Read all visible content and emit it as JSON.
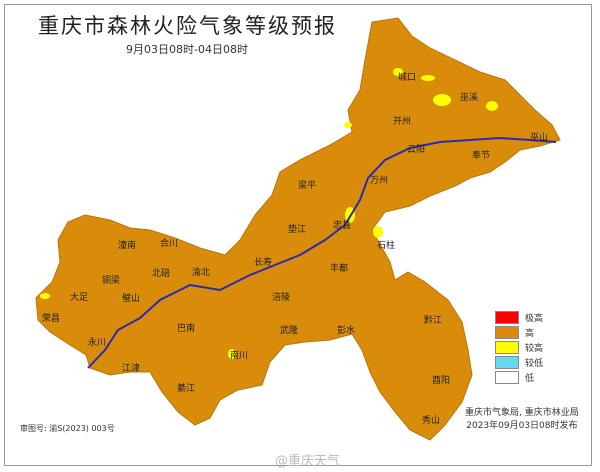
{
  "title": "重庆市森林火险气象等级预报",
  "subtitle": "9月03日08时-04日08时",
  "legend": [
    {
      "label": "极高",
      "color": "#ff0000"
    },
    {
      "label": "高",
      "color": "#d98c0a"
    },
    {
      "label": "较高",
      "color": "#ffff00"
    },
    {
      "label": "较低",
      "color": "#66d9f2"
    },
    {
      "label": "低",
      "color": "#ffffff"
    }
  ],
  "issuer": {
    "line1": "重庆市气象局, 重庆市林业局",
    "line2": "2023年09月03日08时发布"
  },
  "map_number": "审图号: 渝S(2023) 003号",
  "watermark": "@重庆天气",
  "districts": [
    "城口",
    "巫溪",
    "开州",
    "巫山",
    "云阳",
    "奉节",
    "梁平",
    "万州",
    "忠县",
    "垫江",
    "石柱",
    "长寿",
    "丰都",
    "潼南",
    "合川",
    "铜梁",
    "北碚",
    "渝北",
    "大足",
    "璧山",
    "荣昌",
    "永川",
    "巴南",
    "涪陵",
    "武隆",
    "彭水",
    "黔江",
    "江津",
    "南川",
    "綦江",
    "酉阳",
    "秀山"
  ],
  "colors": {
    "high": "#d98c0a",
    "river": "#2a2ab0"
  }
}
